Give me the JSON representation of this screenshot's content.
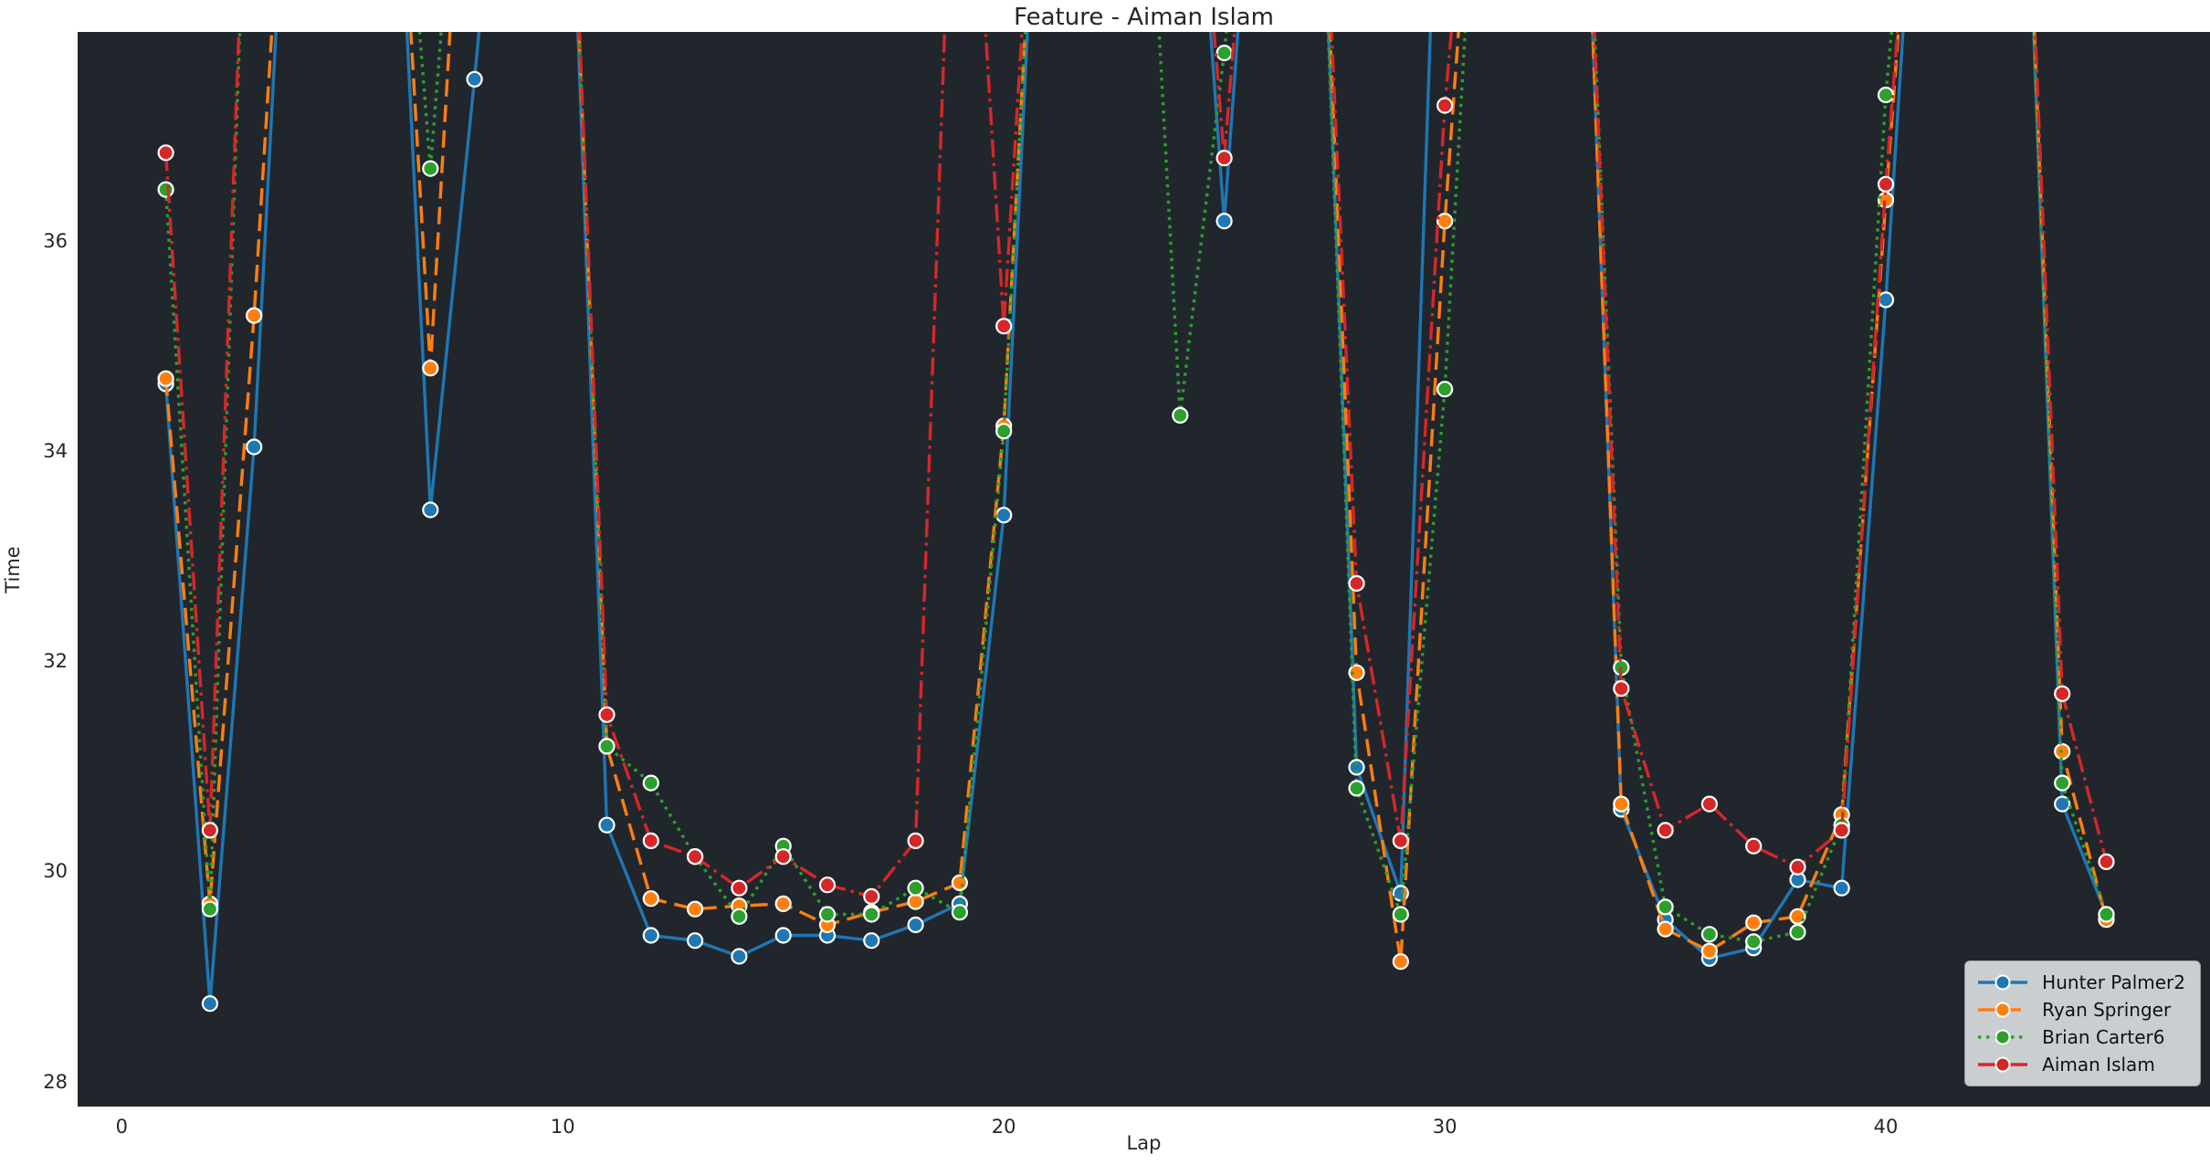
{
  "figure": {
    "title": "Feature - Aiman Islam",
    "xlabel": "Lap",
    "ylabel": "Time",
    "plot_bg_color": "#21262d",
    "page_bg_color": "#ffffff",
    "text_color": "#262626",
    "legend_bg_color": "#d4d7da",
    "legend_border_color": "#9aa0a6"
  },
  "chart_data": {
    "type": "line",
    "title": "Feature - Aiman Islam",
    "xlabel": "Lap",
    "ylabel": "Time",
    "x_ticks": [
      0,
      10,
      20,
      30,
      40
    ],
    "y_ticks": [
      28,
      30,
      32,
      34,
      36
    ],
    "xlim": [
      -1.0,
      47.35
    ],
    "ylim": [
      27.77,
      38.0
    ],
    "grid": false,
    "legend_position": "lower right",
    "first_lap": 1,
    "off_chart_render_value": 42,
    "note": "null = lap time above visible axis range (pit/out-laps drawn running off the top of the plot)",
    "series": [
      {
        "name": "Hunter Palmer2",
        "color": "#1f77b4",
        "linestyle": "solid",
        "values": [
          34.65,
          28.75,
          34.05,
          null,
          null,
          null,
          33.45,
          37.55,
          null,
          null,
          30.45,
          29.4,
          29.35,
          29.2,
          29.4,
          29.4,
          29.35,
          29.5,
          29.7,
          33.4,
          null,
          null,
          null,
          null,
          36.2,
          null,
          null,
          31.0,
          29.8,
          null,
          null,
          null,
          null,
          30.6,
          29.55,
          29.18,
          29.28,
          29.93,
          29.85,
          35.45,
          null,
          null,
          null,
          30.65,
          29.6
        ]
      },
      {
        "name": "Ryan Springer",
        "color": "#ff7f0e",
        "linestyle": "dashed",
        "values": [
          34.7,
          29.7,
          35.3,
          null,
          null,
          null,
          34.8,
          null,
          null,
          null,
          31.2,
          29.75,
          29.65,
          29.68,
          29.7,
          29.5,
          29.62,
          29.72,
          29.9,
          34.25,
          null,
          null,
          null,
          null,
          null,
          null,
          null,
          31.9,
          29.15,
          36.2,
          null,
          null,
          null,
          30.65,
          29.46,
          29.25,
          29.52,
          29.58,
          30.55,
          36.4,
          null,
          null,
          null,
          31.15,
          29.55
        ]
      },
      {
        "name": "Brian Carter6",
        "color": "#2ca02c",
        "linestyle": "dotted",
        "values": [
          36.5,
          29.65,
          null,
          null,
          null,
          null,
          36.7,
          null,
          null,
          null,
          31.2,
          30.85,
          30.15,
          29.58,
          30.25,
          29.6,
          29.6,
          29.85,
          29.62,
          34.2,
          null,
          null,
          null,
          34.35,
          37.8,
          null,
          null,
          30.8,
          29.6,
          34.6,
          null,
          null,
          null,
          31.95,
          29.67,
          29.41,
          29.34,
          29.43,
          30.45,
          37.4,
          null,
          null,
          null,
          30.85,
          29.6
        ]
      },
      {
        "name": "Aiman Islam",
        "color": "#d62728",
        "linestyle": "dashdot",
        "values": [
          36.85,
          30.4,
          null,
          null,
          null,
          null,
          null,
          null,
          null,
          null,
          31.5,
          30.3,
          30.15,
          29.85,
          30.15,
          29.88,
          29.77,
          30.3,
          null,
          35.2,
          null,
          null,
          null,
          null,
          36.8,
          null,
          null,
          32.75,
          30.3,
          37.3,
          null,
          null,
          null,
          31.75,
          30.4,
          30.65,
          30.25,
          30.05,
          30.4,
          36.55,
          null,
          null,
          null,
          31.7,
          30.1
        ]
      }
    ]
  }
}
